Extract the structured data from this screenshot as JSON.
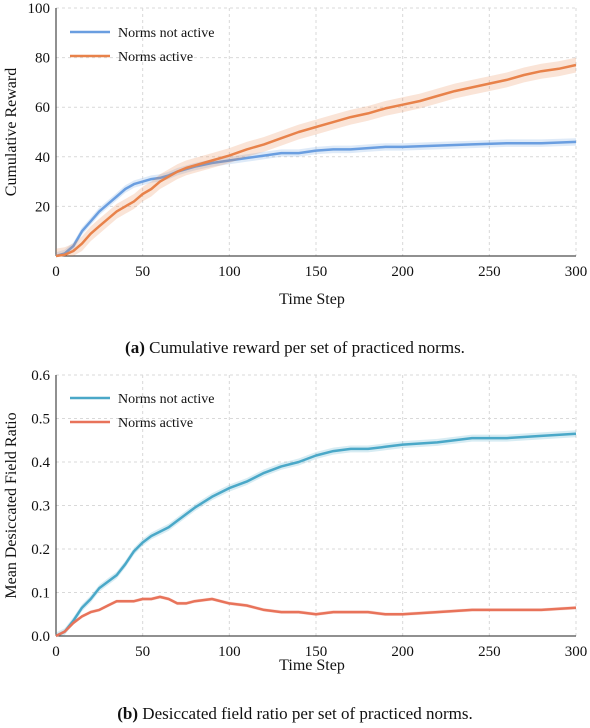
{
  "chart_data": [
    {
      "type": "line",
      "panel_tag": "(a)",
      "caption": "Cumulative reward per set of practiced norms.",
      "xlabel": "Time Step",
      "ylabel": "Cumulative Reward",
      "xlim": [
        0,
        300
      ],
      "ylim": [
        0,
        100
      ],
      "xticks": [
        0,
        50,
        100,
        150,
        200,
        250,
        300
      ],
      "yticks": [
        20,
        40,
        60,
        80,
        100
      ],
      "grid": true,
      "legend_position": "top-left",
      "series": [
        {
          "name": "Norms not active",
          "color": "#6a9ee0",
          "x": [
            0,
            5,
            10,
            15,
            20,
            25,
            30,
            35,
            40,
            45,
            50,
            55,
            60,
            65,
            70,
            75,
            80,
            90,
            100,
            110,
            120,
            130,
            140,
            150,
            160,
            170,
            180,
            190,
            200,
            220,
            240,
            260,
            280,
            300
          ],
          "y": [
            0,
            1,
            4,
            10,
            14,
            18,
            21,
            24,
            27,
            29,
            30,
            31,
            31.5,
            32.5,
            34,
            35,
            36,
            37.5,
            38.5,
            39.5,
            40.5,
            41.5,
            41.5,
            42.5,
            43,
            43,
            43.5,
            44,
            44,
            44.5,
            45,
            45.5,
            45.5,
            46
          ],
          "band": 1.5
        },
        {
          "name": "Norms active",
          "color": "#e8824a",
          "x": [
            0,
            5,
            10,
            15,
            20,
            25,
            30,
            35,
            40,
            45,
            50,
            55,
            60,
            65,
            70,
            75,
            80,
            90,
            100,
            110,
            120,
            130,
            140,
            150,
            160,
            170,
            180,
            190,
            200,
            210,
            220,
            230,
            240,
            250,
            260,
            270,
            280,
            290,
            300
          ],
          "y": [
            0,
            0.5,
            2,
            5,
            9,
            12,
            15,
            18,
            20,
            22,
            25,
            27,
            30,
            32,
            34,
            35.5,
            36.5,
            38.5,
            40.5,
            43,
            45,
            47.5,
            50,
            52,
            54,
            56,
            57.5,
            59.5,
            61,
            62.5,
            64.5,
            66.5,
            68,
            69.5,
            71,
            73,
            74.5,
            75.5,
            77
          ],
          "band": 3
        }
      ]
    },
    {
      "type": "line",
      "panel_tag": "(b)",
      "caption": "Desiccated field ratio per set of practiced norms.",
      "xlabel": "Time Step",
      "ylabel": "Mean Desiccated Field Ratio",
      "xlim": [
        0,
        300
      ],
      "ylim": [
        0,
        0.6
      ],
      "xticks": [
        0,
        50,
        100,
        150,
        200,
        250,
        300
      ],
      "yticks": [
        "0.0",
        "0.1",
        "0.2",
        "0.3",
        "0.4",
        "0.5",
        "0.6"
      ],
      "grid": true,
      "legend_position": "top-left",
      "series": [
        {
          "name": "Norms not active",
          "color": "#4aa8c8",
          "x": [
            0,
            5,
            10,
            15,
            20,
            25,
            30,
            35,
            40,
            45,
            50,
            55,
            60,
            65,
            70,
            75,
            80,
            90,
            100,
            110,
            120,
            130,
            140,
            150,
            160,
            170,
            180,
            190,
            200,
            220,
            240,
            260,
            280,
            300
          ],
          "y": [
            0,
            0.01,
            0.035,
            0.065,
            0.085,
            0.11,
            0.125,
            0.14,
            0.165,
            0.195,
            0.215,
            0.23,
            0.24,
            0.25,
            0.265,
            0.28,
            0.295,
            0.32,
            0.34,
            0.355,
            0.375,
            0.39,
            0.4,
            0.415,
            0.425,
            0.43,
            0.43,
            0.435,
            0.44,
            0.445,
            0.455,
            0.455,
            0.46,
            0.465
          ],
          "band": 0.008
        },
        {
          "name": "Norms active",
          "color": "#e8735a",
          "x": [
            0,
            5,
            10,
            15,
            20,
            25,
            30,
            35,
            40,
            45,
            50,
            55,
            60,
            65,
            70,
            75,
            80,
            90,
            100,
            110,
            120,
            130,
            140,
            150,
            160,
            170,
            180,
            190,
            200,
            220,
            240,
            260,
            280,
            300
          ],
          "y": [
            0,
            0.01,
            0.03,
            0.045,
            0.055,
            0.06,
            0.07,
            0.08,
            0.08,
            0.08,
            0.085,
            0.085,
            0.09,
            0.085,
            0.075,
            0.075,
            0.08,
            0.085,
            0.075,
            0.07,
            0.06,
            0.055,
            0.055,
            0.05,
            0.055,
            0.055,
            0.055,
            0.05,
            0.05,
            0.055,
            0.06,
            0.06,
            0.06,
            0.065
          ],
          "band": 0.004
        }
      ]
    }
  ]
}
